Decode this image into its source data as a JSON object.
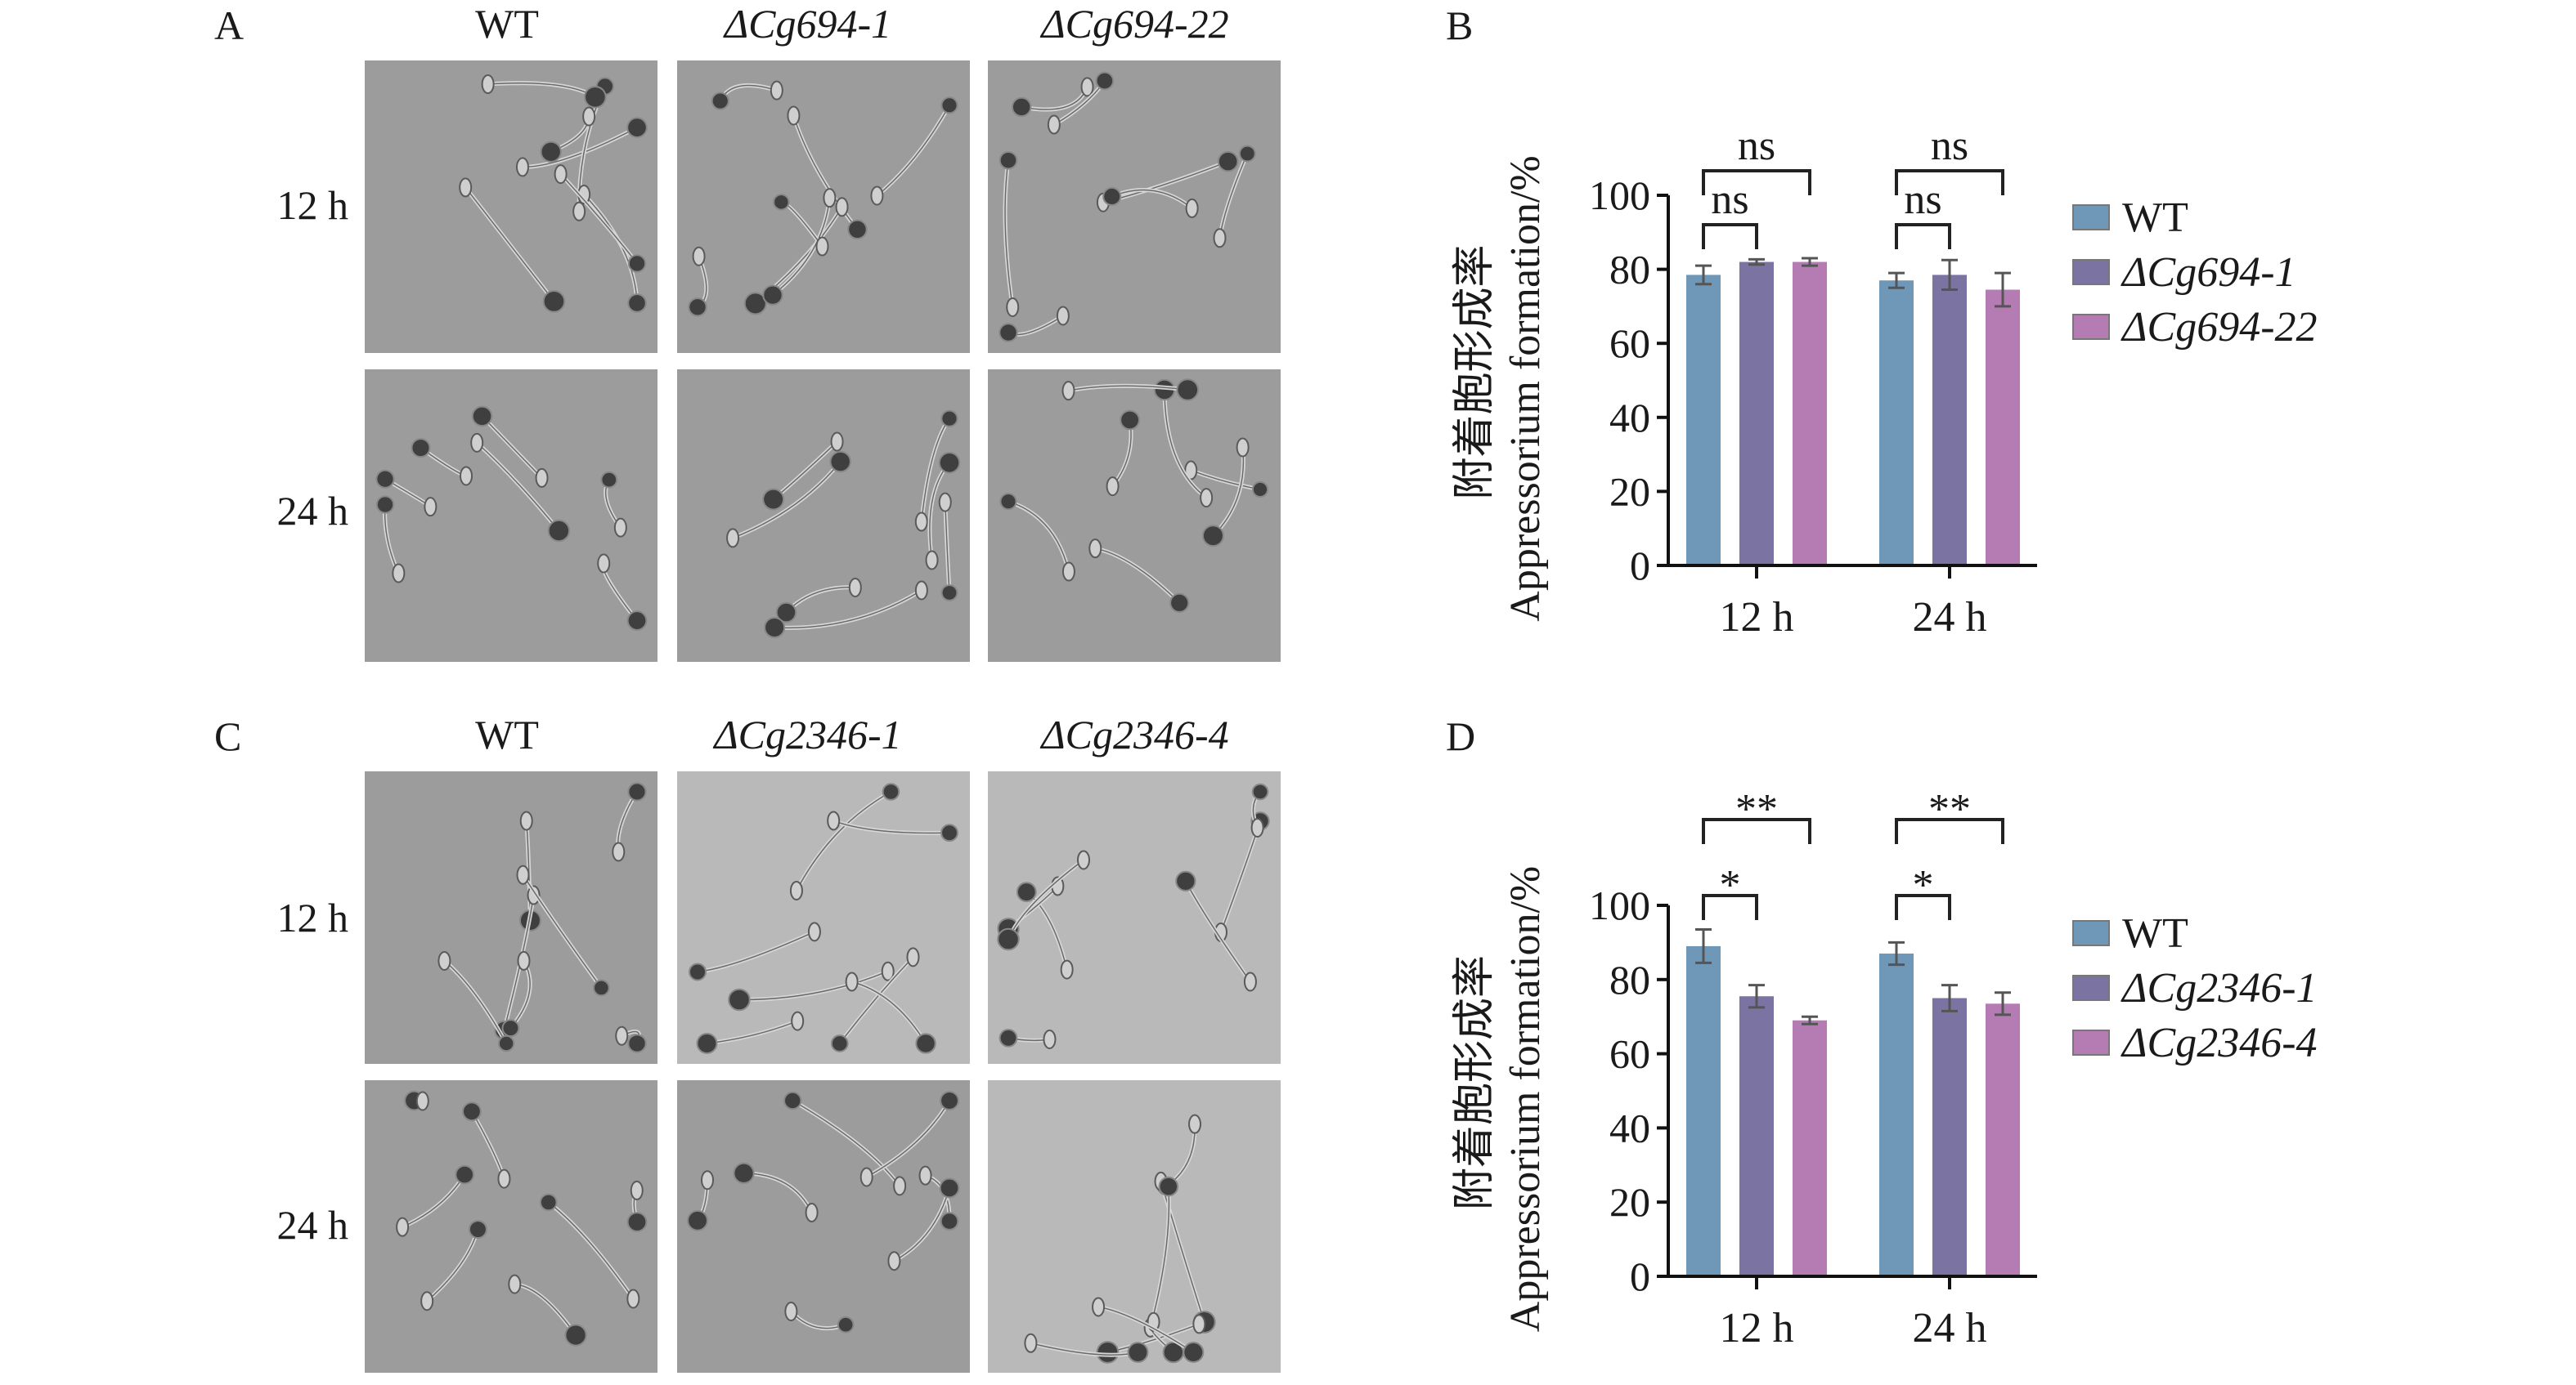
{
  "panels": {
    "A": {
      "letter": "A",
      "columns": [
        "WT",
        "ΔCg694-1",
        "ΔCg694-22"
      ],
      "rows": [
        "12 h",
        "24 h"
      ]
    },
    "C": {
      "letter": "C",
      "columns": [
        "WT",
        "ΔCg2346-1",
        "ΔCg2346-4"
      ],
      "rows": [
        "12 h",
        "24 h"
      ]
    },
    "B": {
      "letter": "B"
    },
    "D": {
      "letter": "D"
    }
  },
  "colors": {
    "WT": "#6f97b8",
    "mutant1": "#7b74a3",
    "mutant2": "#b57cb4",
    "micro_dark": "#9c9c9c",
    "micro_light": "#b9b9b9"
  },
  "chart_data": [
    {
      "panel": "B",
      "type": "bar",
      "ylabel_cn": "附着胞形成率",
      "ylabel_en": "Appressorium formation/%",
      "categories": [
        "12 h",
        "24 h"
      ],
      "ylim": [
        0,
        100
      ],
      "yticks": [
        "0",
        "20",
        "40",
        "60",
        "80",
        "100"
      ],
      "legend_position": "right",
      "series": [
        {
          "name": "WT",
          "values": [
            78.5,
            77
          ],
          "errors": [
            2.5,
            2
          ]
        },
        {
          "name": "ΔCg694-1",
          "values": [
            82,
            78.5
          ],
          "errors": [
            0.7,
            4
          ]
        },
        {
          "name": "ΔCg694-22",
          "values": [
            82,
            74.5
          ],
          "errors": [
            1,
            4.5
          ]
        }
      ],
      "significance": [
        {
          "group": "12 h",
          "compare": [
            "WT",
            "ΔCg694-1"
          ],
          "label": "ns"
        },
        {
          "group": "12 h",
          "compare": [
            "WT",
            "ΔCg694-22"
          ],
          "label": "ns"
        },
        {
          "group": "24 h",
          "compare": [
            "WT",
            "ΔCg694-1"
          ],
          "label": "ns"
        },
        {
          "group": "24 h",
          "compare": [
            "WT",
            "ΔCg694-22"
          ],
          "label": "ns"
        }
      ]
    },
    {
      "panel": "D",
      "type": "bar",
      "ylabel_cn": "附着胞形成率",
      "ylabel_en": "Appressorium formation/%",
      "categories": [
        "12 h",
        "24 h"
      ],
      "ylim": [
        0,
        100
      ],
      "yticks": [
        "0",
        "20",
        "40",
        "60",
        "80",
        "100"
      ],
      "legend_position": "right",
      "series": [
        {
          "name": "WT",
          "values": [
            89,
            87
          ],
          "errors": [
            4.5,
            3
          ]
        },
        {
          "name": "ΔCg2346-1",
          "values": [
            75.5,
            75
          ],
          "errors": [
            3,
            3.5
          ]
        },
        {
          "name": "ΔCg2346-4",
          "values": [
            69,
            73.5
          ],
          "errors": [
            1,
            3
          ]
        }
      ],
      "significance": [
        {
          "group": "12 h",
          "compare": [
            "WT",
            "ΔCg2346-1"
          ],
          "label": "*"
        },
        {
          "group": "12 h",
          "compare": [
            "WT",
            "ΔCg2346-4"
          ],
          "label": "**"
        },
        {
          "group": "24 h",
          "compare": [
            "WT",
            "ΔCg2346-1"
          ],
          "label": "*"
        },
        {
          "group": "24 h",
          "compare": [
            "WT",
            "ΔCg2346-4"
          ],
          "label": "**"
        }
      ]
    }
  ]
}
